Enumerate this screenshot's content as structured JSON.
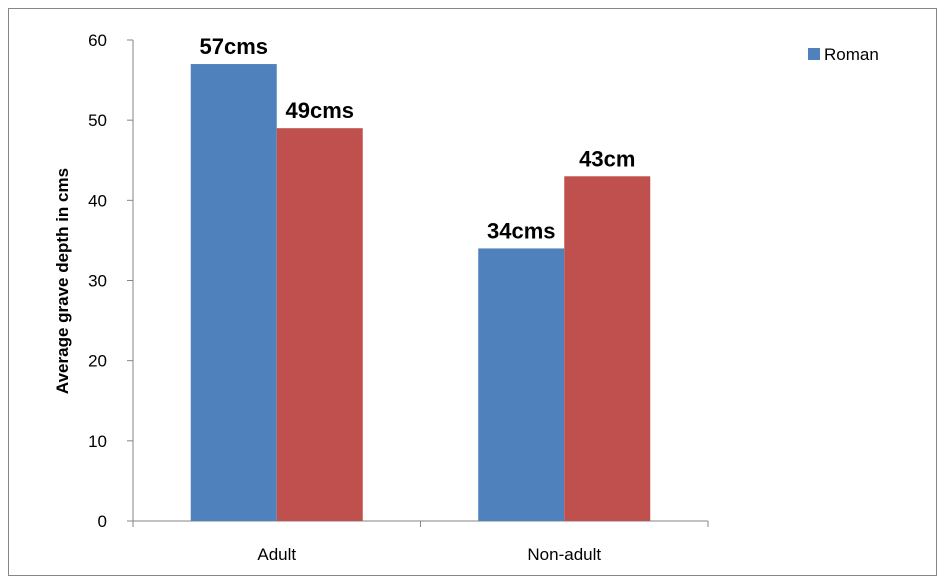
{
  "chart_data": {
    "type": "bar",
    "categories": [
      "Adult",
      "Non-adult"
    ],
    "series": [
      {
        "name": "Roman",
        "values": [
          57,
          34
        ],
        "color": "#4F81BD",
        "labels": [
          "57cms",
          "34cms"
        ]
      },
      {
        "values": [
          49,
          43
        ],
        "color": "#C0504D",
        "labels": [
          "49cms",
          "43cm"
        ]
      }
    ],
    "ylabel": "Average grave depth in cms",
    "xlabel": "",
    "title": "",
    "ylim": [
      0,
      60
    ],
    "yticks": [
      0,
      10,
      20,
      30,
      40,
      50,
      60
    ],
    "grid": false,
    "legend_position": "top-right"
  }
}
